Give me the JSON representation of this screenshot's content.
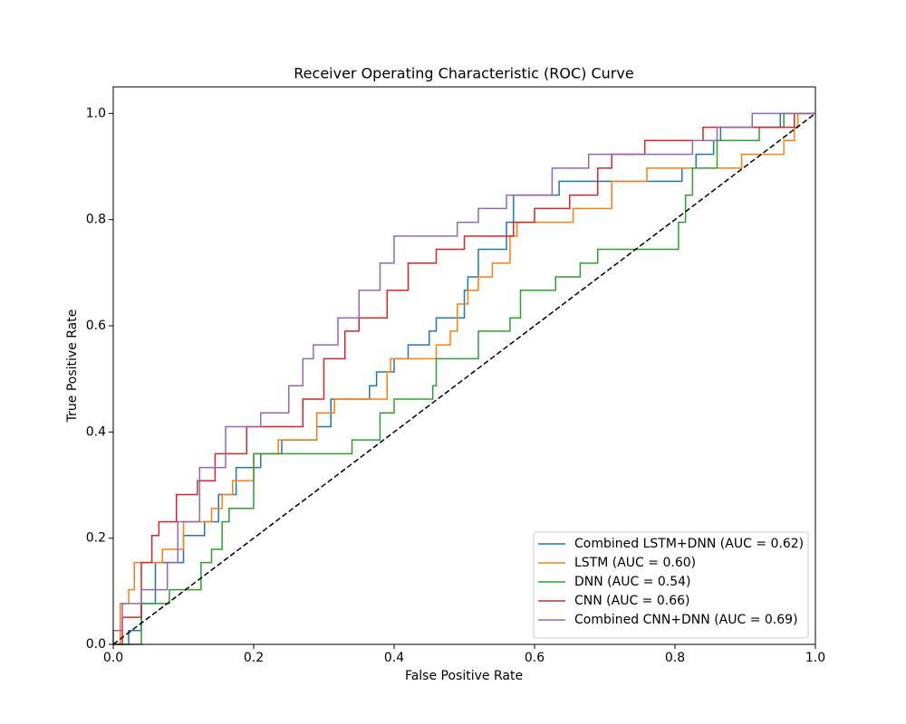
{
  "chart_data": {
    "type": "line",
    "title": "Receiver Operating Characteristic (ROC) Curve",
    "x_label": "False Positive Rate",
    "y_label": "True Positive Rate",
    "xlim": [
      0,
      1
    ],
    "ylim": [
      0,
      1.05
    ],
    "xticks": [
      {
        "value": 0,
        "label": "0.0"
      },
      0.2,
      0.4,
      0.6,
      0.8,
      {
        "value": 1,
        "label": "1.0"
      }
    ],
    "yticks": [
      {
        "value": 0,
        "label": "0.0"
      },
      0.2,
      0.4,
      0.6,
      0.8,
      {
        "value": 1,
        "label": "1.0"
      }
    ],
    "legend": "lower right",
    "reference_line": {
      "x": [
        0,
        1
      ],
      "values": [
        0,
        1
      ],
      "color": "#000000",
      "dashed": true
    },
    "series": [
      {
        "name": "Combined LSTM+DNN (AUC = 0.62)",
        "color": "#1f77b4",
        "x": [
          0,
          0.022,
          0.022,
          0.04,
          0.04,
          0.06,
          0.06,
          0.1,
          0.1,
          0.13,
          0.13,
          0.15,
          0.15,
          0.175,
          0.175,
          0.21,
          0.21,
          0.24,
          0.24,
          0.29,
          0.29,
          0.31,
          0.31,
          0.365,
          0.365,
          0.375,
          0.375,
          0.4,
          0.4,
          0.42,
          0.42,
          0.45,
          0.45,
          0.46,
          0.46,
          0.5,
          0.5,
          0.505,
          0.505,
          0.52,
          0.52,
          0.56,
          0.56,
          0.57,
          0.57,
          0.635,
          0.635,
          0.81,
          0.81,
          0.83,
          0.83,
          0.855,
          0.855,
          0.865,
          0.865,
          0.95,
          0.95,
          1
        ],
        "values": [
          0,
          0,
          0.026,
          0.026,
          0.077,
          0.077,
          0.154,
          0.154,
          0.205,
          0.205,
          0.231,
          0.231,
          0.282,
          0.282,
          0.333,
          0.333,
          0.359,
          0.359,
          0.385,
          0.385,
          0.41,
          0.41,
          0.462,
          0.462,
          0.487,
          0.487,
          0.513,
          0.513,
          0.538,
          0.538,
          0.564,
          0.564,
          0.59,
          0.59,
          0.615,
          0.615,
          0.667,
          0.667,
          0.692,
          0.692,
          0.744,
          0.744,
          0.795,
          0.795,
          0.846,
          0.846,
          0.872,
          0.872,
          0.897,
          0.897,
          0.923,
          0.923,
          0.949,
          0.949,
          0.974,
          0.974,
          1,
          1
        ]
      },
      {
        "name": "LSTM (AUC = 0.60)",
        "color": "#ff7f0e",
        "x": [
          0,
          0.01,
          0.01,
          0.022,
          0.022,
          0.03,
          0.03,
          0.07,
          0.07,
          0.1,
          0.1,
          0.14,
          0.14,
          0.155,
          0.155,
          0.17,
          0.17,
          0.2,
          0.2,
          0.235,
          0.235,
          0.29,
          0.29,
          0.315,
          0.315,
          0.39,
          0.39,
          0.395,
          0.395,
          0.46,
          0.46,
          0.48,
          0.48,
          0.49,
          0.49,
          0.505,
          0.505,
          0.52,
          0.52,
          0.54,
          0.54,
          0.565,
          0.565,
          0.575,
          0.575,
          0.655,
          0.655,
          0.71,
          0.71,
          0.76,
          0.76,
          0.895,
          0.895,
          0.955,
          0.955,
          0.97,
          0.97,
          0.975,
          0.975,
          1
        ],
        "values": [
          0,
          0,
          0.077,
          0.077,
          0.103,
          0.103,
          0.154,
          0.154,
          0.179,
          0.179,
          0.231,
          0.231,
          0.256,
          0.256,
          0.282,
          0.282,
          0.308,
          0.308,
          0.359,
          0.359,
          0.385,
          0.385,
          0.436,
          0.436,
          0.462,
          0.462,
          0.513,
          0.513,
          0.538,
          0.538,
          0.564,
          0.564,
          0.59,
          0.59,
          0.641,
          0.641,
          0.667,
          0.667,
          0.692,
          0.692,
          0.718,
          0.718,
          0.769,
          0.769,
          0.795,
          0.795,
          0.821,
          0.821,
          0.872,
          0.872,
          0.897,
          0.897,
          0.923,
          0.923,
          0.949,
          0.949,
          0.974,
          0.974,
          1,
          1
        ]
      },
      {
        "name": "DNN (AUC = 0.54)",
        "color": "#2ca02c",
        "x": [
          0,
          0.04,
          0.04,
          0.08,
          0.08,
          0.125,
          0.125,
          0.14,
          0.14,
          0.155,
          0.155,
          0.165,
          0.165,
          0.2,
          0.2,
          0.34,
          0.34,
          0.38,
          0.38,
          0.4,
          0.4,
          0.455,
          0.455,
          0.46,
          0.46,
          0.52,
          0.52,
          0.565,
          0.565,
          0.58,
          0.58,
          0.63,
          0.63,
          0.665,
          0.665,
          0.69,
          0.69,
          0.805,
          0.805,
          0.815,
          0.815,
          0.825,
          0.825,
          0.86,
          0.86,
          0.92,
          0.92,
          0.955,
          0.955,
          1
        ],
        "values": [
          0,
          0,
          0.077,
          0.077,
          0.103,
          0.103,
          0.154,
          0.154,
          0.179,
          0.179,
          0.231,
          0.231,
          0.256,
          0.256,
          0.359,
          0.359,
          0.385,
          0.385,
          0.436,
          0.436,
          0.462,
          0.462,
          0.487,
          0.487,
          0.538,
          0.538,
          0.59,
          0.59,
          0.615,
          0.615,
          0.667,
          0.667,
          0.692,
          0.692,
          0.718,
          0.718,
          0.744,
          0.744,
          0.795,
          0.795,
          0.846,
          0.846,
          0.897,
          0.897,
          0.949,
          0.949,
          0.974,
          0.974,
          1,
          1
        ]
      },
      {
        "name": "CNN (AUC = 0.66)",
        "color": "#d62728",
        "x": [
          0,
          0.013,
          0.013,
          0.04,
          0.04,
          0.055,
          0.055,
          0.065,
          0.065,
          0.09,
          0.09,
          0.12,
          0.12,
          0.145,
          0.145,
          0.19,
          0.19,
          0.27,
          0.27,
          0.3,
          0.3,
          0.33,
          0.33,
          0.35,
          0.35,
          0.39,
          0.39,
          0.42,
          0.42,
          0.46,
          0.46,
          0.5,
          0.5,
          0.57,
          0.57,
          0.6,
          0.6,
          0.65,
          0.65,
          0.69,
          0.69,
          0.71,
          0.71,
          0.757,
          0.757,
          0.84,
          0.84,
          0.97,
          0.97,
          1
        ],
        "values": [
          0,
          0,
          0.051,
          0.051,
          0.154,
          0.154,
          0.205,
          0.205,
          0.231,
          0.231,
          0.282,
          0.282,
          0.308,
          0.308,
          0.359,
          0.359,
          0.41,
          0.41,
          0.462,
          0.462,
          0.538,
          0.538,
          0.59,
          0.59,
          0.615,
          0.615,
          0.667,
          0.667,
          0.718,
          0.718,
          0.744,
          0.744,
          0.769,
          0.769,
          0.795,
          0.795,
          0.821,
          0.821,
          0.846,
          0.846,
          0.897,
          0.897,
          0.923,
          0.923,
          0.949,
          0.949,
          0.974,
          0.974,
          1,
          1
        ]
      },
      {
        "name": "Combined CNN+DNN (AUC = 0.69)",
        "color": "#9467bd",
        "x": [
          0,
          0,
          0.013,
          0.013,
          0.04,
          0.04,
          0.077,
          0.077,
          0.092,
          0.092,
          0.123,
          0.123,
          0.16,
          0.16,
          0.21,
          0.21,
          0.25,
          0.25,
          0.27,
          0.27,
          0.285,
          0.285,
          0.32,
          0.32,
          0.35,
          0.35,
          0.38,
          0.38,
          0.4,
          0.4,
          0.49,
          0.49,
          0.52,
          0.52,
          0.56,
          0.56,
          0.625,
          0.625,
          0.677,
          0.677,
          0.825,
          0.825,
          0.86,
          0.86,
          0.91,
          0.91,
          1
        ],
        "values": [
          0,
          0.026,
          0.026,
          0.077,
          0.077,
          0.103,
          0.103,
          0.154,
          0.154,
          0.231,
          0.231,
          0.333,
          0.333,
          0.41,
          0.41,
          0.436,
          0.436,
          0.487,
          0.487,
          0.538,
          0.538,
          0.564,
          0.564,
          0.615,
          0.615,
          0.667,
          0.667,
          0.718,
          0.718,
          0.769,
          0.769,
          0.795,
          0.795,
          0.821,
          0.821,
          0.846,
          0.846,
          0.897,
          0.897,
          0.923,
          0.923,
          0.949,
          0.949,
          0.974,
          0.974,
          1,
          1
        ]
      }
    ]
  }
}
